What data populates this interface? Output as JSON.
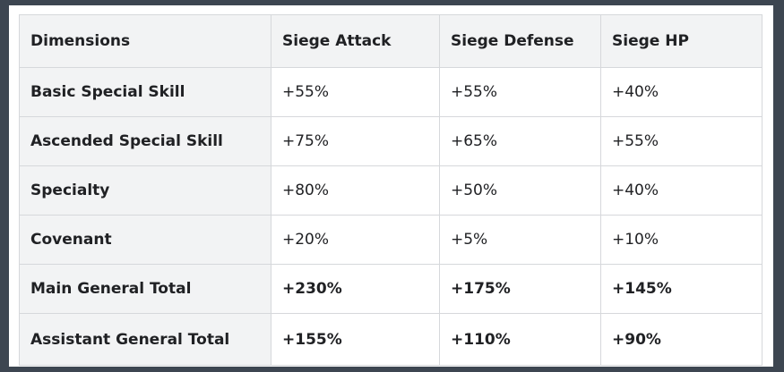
{
  "table": {
    "headers": [
      "Dimensions",
      "Siege Attack",
      "Siege Defense",
      "Siege HP"
    ],
    "rows": [
      {
        "label": "Basic Special Skill",
        "values": [
          "+55%",
          "+55%",
          "+40%"
        ],
        "bold": false
      },
      {
        "label": "Ascended Special Skill",
        "values": [
          "+75%",
          "+65%",
          "+55%"
        ],
        "bold": false
      },
      {
        "label": "Specialty",
        "values": [
          "+80%",
          "+50%",
          "+40%"
        ],
        "bold": false
      },
      {
        "label": "Covenant",
        "values": [
          "+20%",
          "+5%",
          "+10%"
        ],
        "bold": false
      },
      {
        "label": "Main General Total",
        "values": [
          "+230%",
          "+175%",
          "+145%"
        ],
        "bold": true
      },
      {
        "label": "Assistant General Total",
        "values": [
          "+155%",
          "+110%",
          "+90%"
        ],
        "bold": true
      }
    ]
  },
  "colors": {
    "background": "#3d4651",
    "panel": "#ffffff",
    "header_bg": "#f2f3f4",
    "border": "#d6d8db",
    "text": "#202124"
  }
}
